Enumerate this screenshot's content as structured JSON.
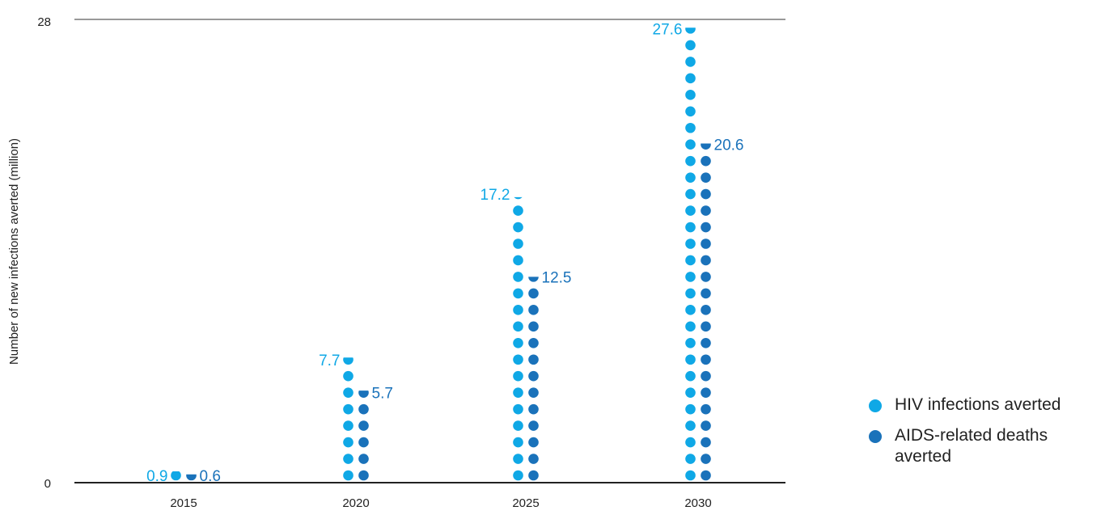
{
  "chart_data": {
    "type": "dot-column",
    "title": "",
    "ylabel": "Number of new infections averted (million)",
    "xlabel": "",
    "categories": [
      "2015",
      "2020",
      "2025",
      "2030"
    ],
    "ylim": [
      0,
      28
    ],
    "y_ticks": [
      "0",
      "28"
    ],
    "grid": false,
    "legend_position": "right",
    "series": [
      {
        "name": "HIV infections averted",
        "color": "#0FA8E6",
        "values": [
          0.9,
          7.7,
          17.2,
          27.6
        ],
        "labels": [
          "0.9",
          "7.7",
          "17.2",
          "27.6"
        ]
      },
      {
        "name": "AIDS-related deaths averted",
        "color": "#1A72BA",
        "values": [
          0.6,
          5.7,
          12.5,
          20.6
        ],
        "labels": [
          "0.6",
          "5.7",
          "12.5",
          "20.6"
        ]
      }
    ]
  }
}
